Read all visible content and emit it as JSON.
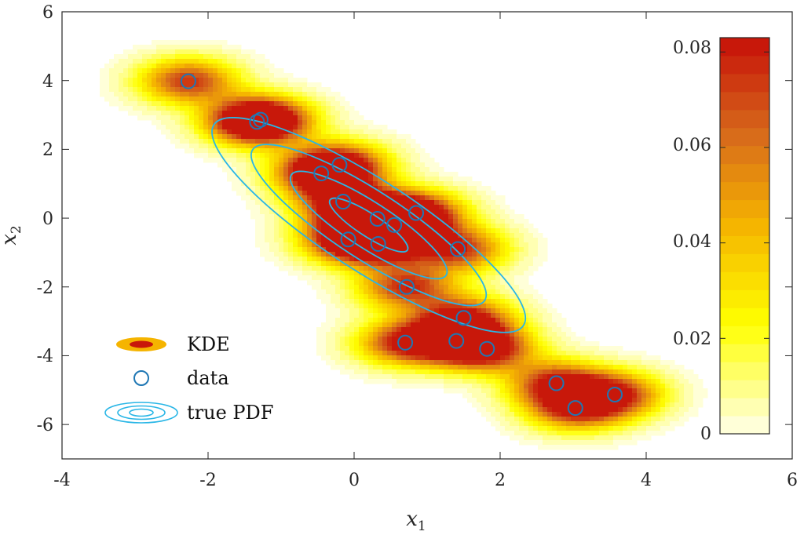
{
  "chart_data": {
    "type": "heatmap",
    "title": "",
    "xlabel": "x",
    "xlabel_sub": "1",
    "ylabel": "x",
    "ylabel_sub": "2",
    "xlim": [
      -4,
      6
    ],
    "ylim": [
      -7,
      6
    ],
    "xticks": [
      "-4",
      "-2",
      "0",
      "2",
      "4",
      "6"
    ],
    "yticks": [
      "-6",
      "-4",
      "-2",
      "0",
      "2",
      "4",
      "6"
    ],
    "grid": false,
    "legend": {
      "position": "bottom-left",
      "entries": [
        "KDE",
        "data",
        "true PDF"
      ]
    },
    "colorbar": {
      "range": [
        0,
        0.083
      ],
      "ticks": [
        "0",
        "0.02",
        "0.04",
        "0.06",
        "0.08"
      ],
      "tick_values": [
        0,
        0.02,
        0.04,
        0.06,
        0.08
      ],
      "levels": 22
    },
    "kde_colors": [
      "#ffffff",
      "#ffff00",
      "#f5b400",
      "#d76a1b",
      "#c8180a"
    ],
    "true_pdf_color": "#29b6e6",
    "data_marker_color": "#1f77b4",
    "data_points": [
      {
        "x": -2.27,
        "y": 3.98
      },
      {
        "x": -1.33,
        "y": 2.8
      },
      {
        "x": -1.28,
        "y": 2.86
      },
      {
        "x": -0.45,
        "y": 1.3
      },
      {
        "x": -0.2,
        "y": 1.55
      },
      {
        "x": -0.15,
        "y": 0.48
      },
      {
        "x": -0.08,
        "y": -0.62
      },
      {
        "x": 0.32,
        "y": -0.02
      },
      {
        "x": 0.55,
        "y": -0.2
      },
      {
        "x": 0.85,
        "y": 0.15
      },
      {
        "x": 0.33,
        "y": -0.75
      },
      {
        "x": 1.42,
        "y": -0.9
      },
      {
        "x": 0.72,
        "y": -2.0
      },
      {
        "x": 1.5,
        "y": -2.9
      },
      {
        "x": 0.7,
        "y": -3.62
      },
      {
        "x": 1.4,
        "y": -3.57
      },
      {
        "x": 1.82,
        "y": -3.8
      },
      {
        "x": 2.77,
        "y": -4.8
      },
      {
        "x": 3.03,
        "y": -5.52
      },
      {
        "x": 3.57,
        "y": -5.13
      }
    ],
    "kde_peak": {
      "x": 0.2,
      "y": -0.1
    },
    "true_pdf": {
      "mean": [
        0.2,
        -0.2
      ],
      "levels": 4
    }
  }
}
